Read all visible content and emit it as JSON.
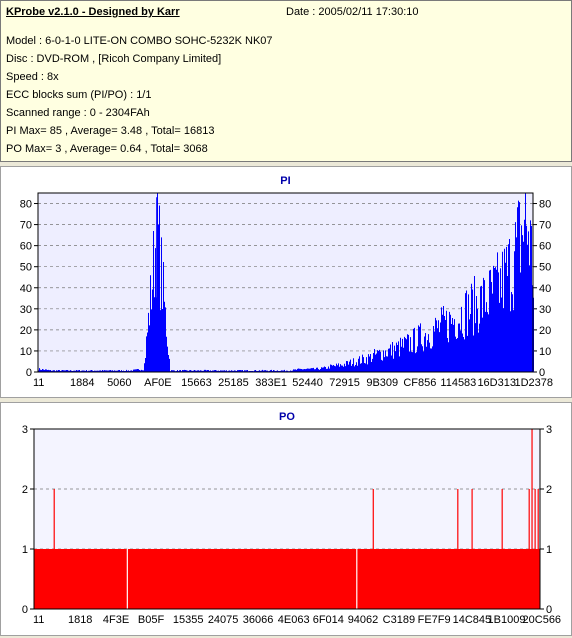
{
  "header": {
    "app_title": "KProbe v2.1.0 - Designed by Karr",
    "date_text": "Date : 2005/02/11 17:30:10"
  },
  "info_lines": [
    "Model : 6-0-1-0 LITE-ON COMBO SOHC-5232K NK07",
    "Disc : DVD-ROM ,  [Ricoh Company Limited]",
    "Speed : 8x",
    "ECC blocks sum (PI/PO) : 1/1",
    "Scanned range : 0 - 2304FAh",
    "PI Max= 85 , Average= 3.48 , Total= 16813",
    "PO Max= 3 , Average= 0.64 , Total= 3068"
  ],
  "colors": {
    "pi_series": "#0000ff",
    "po_series": "#ff0000",
    "title": "#0000aa",
    "plot_bg": "#eeeeff",
    "po_plot_bg": "#f4f4ff"
  },
  "chart_data": [
    {
      "type": "bar",
      "title": "PI",
      "xlabel": "",
      "ylabel": "",
      "x_range": [
        0,
        2304250
      ],
      "ylim": [
        0,
        85
      ],
      "y_ticks": [
        0,
        10,
        20,
        30,
        40,
        50,
        60,
        70,
        80
      ],
      "x_tick_labels": [
        "11",
        "1884",
        "5060",
        "AF0E",
        "15663",
        "25185",
        "383E1",
        "52440",
        "72915",
        "9B309",
        "CF856",
        "114583",
        "16D313",
        "1D2378"
      ],
      "grid": true,
      "series": [
        {
          "name": "PI",
          "points": [
            [
              0,
              2
            ],
            [
              61440,
              1
            ],
            [
              122880,
              1
            ],
            [
              184320,
              1
            ],
            [
              245760,
              1
            ],
            [
              307200,
              1
            ],
            [
              368640,
              1
            ],
            [
              430080,
              1
            ],
            [
              491520,
              2
            ],
            [
              552960,
              83
            ],
            [
              614400,
              1
            ],
            [
              675840,
              1
            ],
            [
              737280,
              1
            ],
            [
              798720,
              1
            ],
            [
              860160,
              1
            ],
            [
              921600,
              1
            ],
            [
              983040,
              1
            ],
            [
              1044480,
              1
            ],
            [
              1105920,
              1
            ],
            [
              1167360,
              1
            ],
            [
              1228800,
              2
            ],
            [
              1290240,
              2
            ],
            [
              1351680,
              3
            ],
            [
              1413120,
              4
            ],
            [
              1474560,
              6
            ],
            [
              1536000,
              8
            ],
            [
              1597440,
              11
            ],
            [
              1658880,
              13
            ],
            [
              1720320,
              16
            ],
            [
              1781760,
              20
            ],
            [
              1843200,
              24
            ],
            [
              1904640,
              28
            ],
            [
              1966080,
              33
            ],
            [
              2027520,
              38
            ],
            [
              2088960,
              42
            ],
            [
              2150400,
              50
            ],
            [
              2211840,
              63
            ],
            [
              2236416,
              75
            ],
            [
              2260992,
              85
            ],
            [
              2285568,
              80
            ],
            [
              2304250,
              55
            ]
          ]
        }
      ]
    },
    {
      "type": "bar",
      "title": "PO",
      "xlabel": "",
      "ylabel": "",
      "x_range": [
        0,
        2304250
      ],
      "ylim": [
        0,
        3
      ],
      "y_ticks": [
        0,
        1,
        2,
        3
      ],
      "x_tick_labels": [
        "11",
        "1818",
        "4F3E",
        "B05F",
        "15355",
        "24075",
        "36066",
        "4E063",
        "6F014",
        "94062",
        "C3189",
        "FE7F9",
        "14C845",
        "1B1009",
        "20C566"
      ],
      "grid": true,
      "series": [
        {
          "name": "PO",
          "baseline": 1,
          "gaps": [
            425000,
            1470000
          ],
          "spikes": [
            [
              92000,
              2
            ],
            [
              1545000,
              2
            ],
            [
              1930000,
              2
            ],
            [
              1995000,
              2
            ],
            [
              2132000,
              2
            ],
            [
              2255000,
              2
            ],
            [
              2268000,
              3
            ],
            [
              2282000,
              2
            ],
            [
              2296000,
              2
            ]
          ]
        }
      ]
    }
  ]
}
